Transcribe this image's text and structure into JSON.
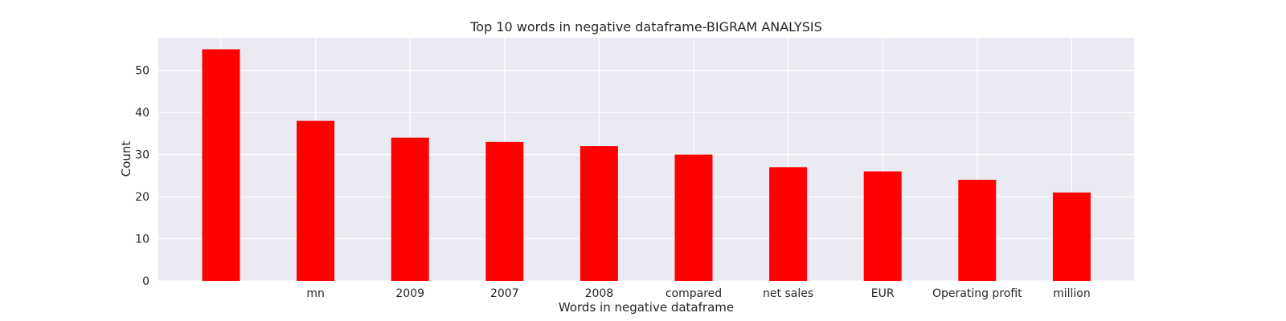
{
  "chart_data": {
    "type": "bar",
    "title": "Top 10 words in negative dataframe-BIGRAM ANALYSIS",
    "xlabel": "Words in negative dataframe",
    "ylabel": "Count",
    "categories": [
      "",
      "mn",
      "2009",
      "2007",
      "2008",
      "compared",
      "net sales",
      "EUR",
      "Operating profit",
      "million"
    ],
    "values": [
      55,
      38,
      34,
      33,
      32,
      30,
      27,
      26,
      24,
      21
    ],
    "ylim": [
      0,
      57.75
    ],
    "yticks": [
      0,
      10,
      20,
      30,
      40,
      50
    ],
    "grid": true,
    "colors": {
      "bar": "#ff0000",
      "plot_background": "#eaeaf2",
      "grid": "#ffffff",
      "text": "#262626"
    }
  }
}
